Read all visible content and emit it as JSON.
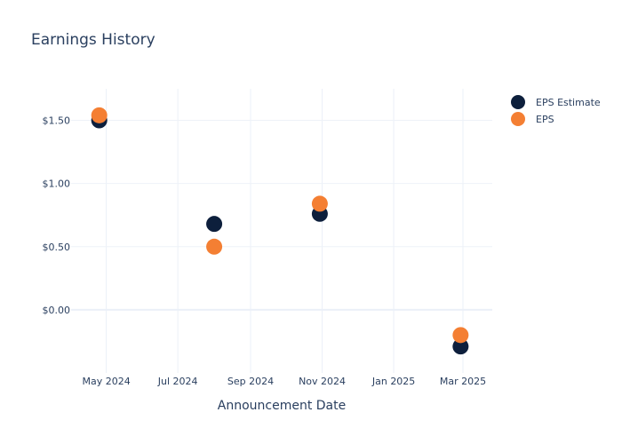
{
  "chart_data": {
    "type": "scatter",
    "title": "Earnings History",
    "xlabel": "Announcement Date",
    "ylabel": "",
    "x_axis_type": "date",
    "xlim": [
      "2024-04-01",
      "2025-03-26"
    ],
    "ylim": [
      -0.5,
      1.75
    ],
    "x_ticks": [
      {
        "value": "2024-05-01",
        "label": "May 2024"
      },
      {
        "value": "2024-07-01",
        "label": "Jul 2024"
      },
      {
        "value": "2024-09-01",
        "label": "Sep 2024"
      },
      {
        "value": "2024-11-01",
        "label": "Nov 2024"
      },
      {
        "value": "2025-01-01",
        "label": "Jan 2025"
      },
      {
        "value": "2025-03-01",
        "label": "Mar 2025"
      }
    ],
    "y_ticks": [
      {
        "value": 0,
        "label": "$0.00"
      },
      {
        "value": 0.5,
        "label": "$0.50"
      },
      {
        "value": 1.0,
        "label": "$1.00"
      },
      {
        "value": 1.5,
        "label": "$1.50"
      }
    ],
    "grid": true,
    "legend_position": "top-right",
    "x": [
      "2024-04-25",
      "2024-08-01",
      "2024-10-30",
      "2025-02-27"
    ],
    "series": [
      {
        "name": "EPS Estimate",
        "color": "#0d1f3c",
        "values": [
          1.5,
          0.68,
          0.76,
          -0.29
        ]
      },
      {
        "name": "EPS",
        "color": "#f47f33",
        "values": [
          1.54,
          0.5,
          0.84,
          -0.2
        ]
      }
    ]
  }
}
